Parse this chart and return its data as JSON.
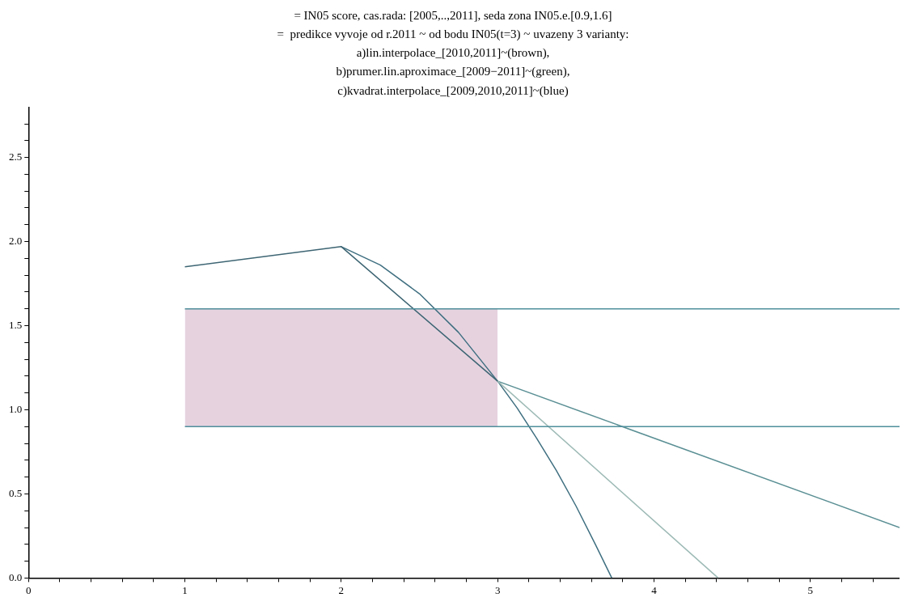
{
  "chart_data": {
    "type": "line",
    "title": "= IN05 score, cas.rada: [2005,..,2011], seda zona IN05.e.[0.9,1.6]",
    "subtitle": "=  predikce vyvoje od r.2011 ~ od bodu IN05(t=3) ~ uvazeny 3 varianty:\na)lin.interpolace_[2010,2011]~(brown),\nb)prumer.lin.aproximace_[2009−2011]~(green),\nc)kvadrat.interpolace_[2009,2010,2011]~(blue)",
    "xlim": [
      0,
      5.57
    ],
    "ylim": [
      0,
      2.8
    ],
    "xticks": [
      0,
      {
        "value": 0.2,
        "label": null
      },
      {
        "value": 0.4,
        "label": null
      },
      {
        "value": 0.6,
        "label": null
      },
      {
        "value": 0.8,
        "label": null
      },
      1,
      {
        "value": 1.2,
        "label": null
      },
      {
        "value": 1.4,
        "label": null
      },
      {
        "value": 1.6,
        "label": null
      },
      {
        "value": 1.8,
        "label": null
      },
      2,
      {
        "value": 2.2,
        "label": null
      },
      {
        "value": 2.4,
        "label": null
      },
      {
        "value": 2.6,
        "label": null
      },
      {
        "value": 2.8,
        "label": null
      },
      3,
      {
        "value": 3.2,
        "label": null
      },
      {
        "value": 3.4,
        "label": null
      },
      {
        "value": 3.6,
        "label": null
      },
      {
        "value": 3.8,
        "label": null
      },
      4,
      {
        "value": 4.2,
        "label": null
      },
      {
        "value": 4.4,
        "label": null
      },
      {
        "value": 4.6,
        "label": null
      },
      {
        "value": 4.8,
        "label": null
      },
      5,
      {
        "value": 5.2,
        "label": null
      },
      {
        "value": 5.4,
        "label": null
      }
    ],
    "yticks": [
      {
        "value": 0,
        "label": "0.0"
      },
      {
        "value": 0.1,
        "label": null
      },
      {
        "value": 0.2,
        "label": null
      },
      {
        "value": 0.3,
        "label": null
      },
      {
        "value": 0.4,
        "label": null
      },
      {
        "value": 0.5,
        "label": "0.5"
      },
      {
        "value": 0.6,
        "label": null
      },
      {
        "value": 0.7,
        "label": null
      },
      {
        "value": 0.8,
        "label": null
      },
      {
        "value": 0.9,
        "label": null
      },
      {
        "value": 1,
        "label": "1.0"
      },
      {
        "value": 1.1,
        "label": null
      },
      {
        "value": 1.2,
        "label": null
      },
      {
        "value": 1.3,
        "label": null
      },
      {
        "value": 1.4,
        "label": null
      },
      {
        "value": 1.5,
        "label": "1.5"
      },
      {
        "value": 1.6,
        "label": null
      },
      {
        "value": 1.7,
        "label": null
      },
      {
        "value": 1.8,
        "label": null
      },
      {
        "value": 1.9,
        "label": null
      },
      {
        "value": 2,
        "label": "2.0"
      },
      {
        "value": 2.1,
        "label": null
      },
      {
        "value": 2.2,
        "label": null
      },
      {
        "value": 2.3,
        "label": null
      },
      {
        "value": 2.4,
        "label": null
      },
      {
        "value": 2.5,
        "label": "2.5"
      },
      {
        "value": 2.6,
        "label": null
      },
      {
        "value": 2.7,
        "label": null
      }
    ],
    "grid": false,
    "legend": false,
    "marker": "none",
    "series": [
      {
        "color": "#4f8f9c",
        "x": [
          1,
          3,
          5.57
        ],
        "values": [
          1.6,
          1.6,
          1.6
        ],
        "lower": [
          0.9,
          0.9,
          null
        ],
        "upper": [
          1.6,
          1.6,
          null
        ]
      },
      {
        "color": "#4f8f9c",
        "x": [
          1,
          5.57
        ],
        "values": [
          0.9,
          0.9
        ]
      },
      {
        "color": "#3d6573",
        "x": [
          1,
          2,
          3
        ],
        "values": [
          1.85,
          1.97,
          1.17
        ]
      },
      {
        "color": "#9dbab5",
        "x": [
          3,
          4.41
        ],
        "values": [
          1.17,
          0
        ]
      },
      {
        "color": "#5a8f94",
        "x": [
          3,
          5.57
        ],
        "values": [
          1.17,
          0.3
        ]
      },
      {
        "color": "#3f6f80",
        "x": [
          2,
          2.25,
          2.5,
          2.75,
          3,
          3.125,
          3.25,
          3.375,
          3.5,
          3.625,
          3.73
        ],
        "values": [
          1.97,
          1.86,
          1.69,
          1.46,
          1.17,
          1.01,
          0.83,
          0.64,
          0.43,
          0.2,
          0
        ]
      }
    ]
  }
}
